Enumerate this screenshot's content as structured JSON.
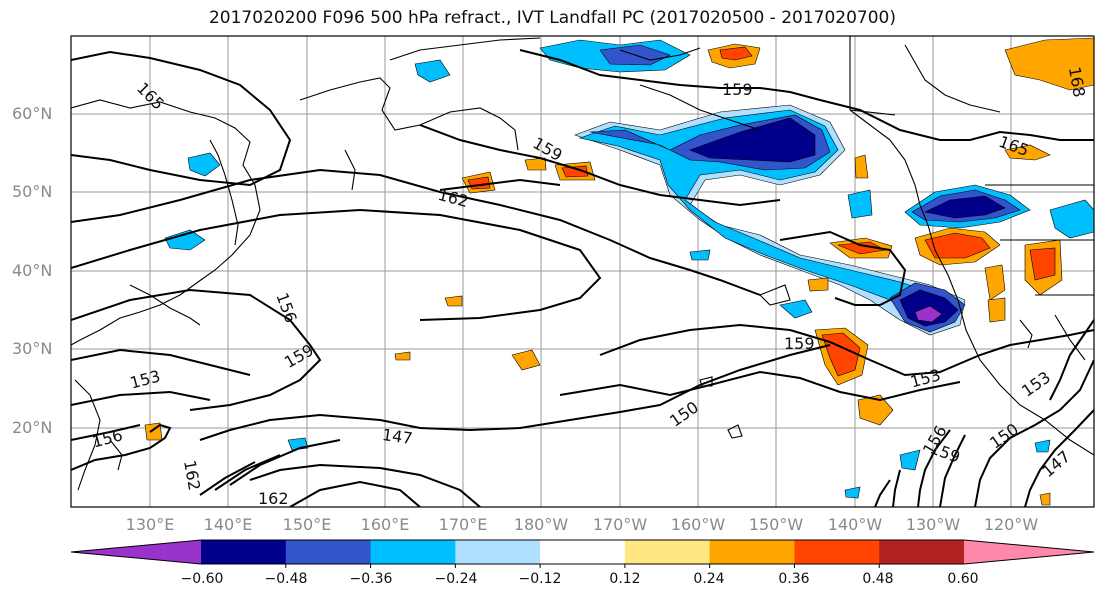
{
  "title": "2017020200 F096 500 hPa refract., IVT Landfall PC (2017020500 - 2017020700)",
  "lat_labels": [
    "60°N",
    "50°N",
    "40°N",
    "30°N",
    "20°N"
  ],
  "lon_labels": [
    "130°E",
    "140°E",
    "150°E",
    "160°E",
    "170°E",
    "180°W",
    "170°W",
    "160°W",
    "150°W",
    "140°W",
    "130°W",
    "120°W"
  ],
  "contour_labels": [
    "165",
    "159",
    "159",
    "162",
    "165",
    "156",
    "159",
    "159",
    "153",
    "153",
    "153",
    "150",
    "147",
    "156",
    "162",
    "162",
    "150",
    "147",
    "156",
    "159",
    "168"
  ],
  "colorbar": {
    "ticks": [
      "−0.60",
      "−0.48",
      "−0.36",
      "−0.24",
      "−0.12",
      "0.12",
      "0.24",
      "0.36",
      "0.48",
      "0.60"
    ],
    "colors": [
      "#9933cc",
      "#00008b",
      "#3355cc",
      "#00bfff",
      "#b0e0ff",
      "#ffffff",
      "#ffe680",
      "#ffa500",
      "#ff4500",
      "#b22222",
      "#ff88aa"
    ]
  },
  "fill_colors": {
    "neg_strong": "#00008b",
    "neg_mid": "#3355cc",
    "neg_light": "#00bfff",
    "neg_faint": "#b0e0ff",
    "neg_extreme": "#9933cc",
    "pos_faint": "#ffe680",
    "pos_light": "#ffa500",
    "pos_mid": "#ff4500",
    "pos_strong": "#b22222"
  }
}
